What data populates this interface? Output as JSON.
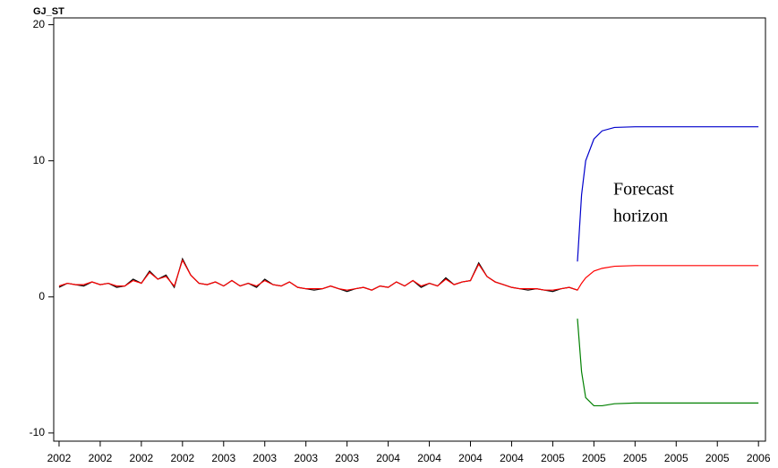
{
  "chart_data": {
    "type": "line",
    "y_axis_label": "GJ_ST",
    "annotation": [
      "Forecast",
      "horizon"
    ],
    "xlim": [
      -0.13,
      17.17
    ],
    "ylim": [
      -10.6,
      20.5
    ],
    "yticks": [
      -10,
      0,
      10,
      20
    ],
    "xticks": [
      {
        "value": 0,
        "label": "2002"
      },
      {
        "value": 1,
        "label": "2002"
      },
      {
        "value": 2,
        "label": "2002"
      },
      {
        "value": 3,
        "label": "2002"
      },
      {
        "value": 4,
        "label": "2003"
      },
      {
        "value": 5,
        "label": "2003"
      },
      {
        "value": 6,
        "label": "2003"
      },
      {
        "value": 7,
        "label": "2003"
      },
      {
        "value": 8,
        "label": "2004"
      },
      {
        "value": 9,
        "label": "2004"
      },
      {
        "value": 10,
        "label": "2004"
      },
      {
        "value": 11,
        "label": "2004"
      },
      {
        "value": 12,
        "label": "2005"
      },
      {
        "value": 13,
        "label": "2005"
      },
      {
        "value": 14,
        "label": "2005"
      },
      {
        "value": 15,
        "label": "2005"
      },
      {
        "value": 16,
        "label": "2005"
      },
      {
        "value": 17,
        "label": "2006"
      }
    ],
    "series": [
      {
        "color": "#000000",
        "x": [
          0,
          0.2,
          0.4,
          0.6,
          0.8,
          1,
          1.2,
          1.4,
          1.6,
          1.8,
          2,
          2.2,
          2.4,
          2.6,
          2.8,
          3,
          3.2,
          3.4,
          3.6,
          3.8,
          4,
          4.2,
          4.4,
          4.6,
          4.8,
          5,
          5.2,
          5.4,
          5.6,
          5.8,
          6,
          6.2,
          6.4,
          6.6,
          6.8,
          7,
          7.2,
          7.4,
          7.6,
          7.8,
          8,
          8.2,
          8.4,
          8.6,
          8.8,
          9,
          9.2,
          9.4,
          9.6,
          9.8,
          10,
          10.2,
          10.4,
          10.6,
          10.8,
          11,
          11.2,
          11.4,
          11.6,
          11.8,
          12,
          12.2,
          12.4,
          12.6
        ],
        "values": [
          0.7,
          1.0,
          0.9,
          0.8,
          1.1,
          0.9,
          1.0,
          0.7,
          0.8,
          1.3,
          1.0,
          1.9,
          1.3,
          1.6,
          0.7,
          2.8,
          1.6,
          1.0,
          0.9,
          1.1,
          0.8,
          1.2,
          0.8,
          1.0,
          0.7,
          1.3,
          0.9,
          0.8,
          1.1,
          0.7,
          0.6,
          0.5,
          0.6,
          0.8,
          0.6,
          0.4,
          0.6,
          0.7,
          0.5,
          0.8,
          0.7,
          1.1,
          0.8,
          1.2,
          0.7,
          1.0,
          0.8,
          1.4,
          0.9,
          1.1,
          1.2,
          2.5,
          1.5,
          1.1,
          0.9,
          0.7,
          0.6,
          0.5,
          0.6,
          0.5,
          0.4,
          0.6,
          0.7,
          0.5
        ]
      },
      {
        "color": "#ff0000",
        "x": [
          0,
          0.2,
          0.4,
          0.6,
          0.8,
          1,
          1.2,
          1.4,
          1.6,
          1.8,
          2,
          2.2,
          2.4,
          2.6,
          2.8,
          3,
          3.2,
          3.4,
          3.6,
          3.8,
          4,
          4.2,
          4.4,
          4.6,
          4.8,
          5,
          5.2,
          5.4,
          5.6,
          5.8,
          6,
          6.2,
          6.4,
          6.6,
          6.8,
          7,
          7.2,
          7.4,
          7.6,
          7.8,
          8,
          8.2,
          8.4,
          8.6,
          8.8,
          9,
          9.2,
          9.4,
          9.6,
          9.8,
          10,
          10.2,
          10.4,
          10.6,
          10.8,
          11,
          11.2,
          11.4,
          11.6,
          11.8,
          12,
          12.2,
          12.4,
          12.6,
          12.7,
          12.8,
          13,
          13.2,
          13.5,
          14,
          15,
          16,
          17
        ],
        "values": [
          0.8,
          1.0,
          0.9,
          0.9,
          1.1,
          0.9,
          1.0,
          0.8,
          0.8,
          1.2,
          1.0,
          1.8,
          1.3,
          1.5,
          0.8,
          2.7,
          1.6,
          1.0,
          0.9,
          1.1,
          0.8,
          1.2,
          0.8,
          1.0,
          0.8,
          1.2,
          0.9,
          0.8,
          1.1,
          0.7,
          0.6,
          0.6,
          0.6,
          0.8,
          0.6,
          0.5,
          0.6,
          0.7,
          0.5,
          0.8,
          0.7,
          1.1,
          0.8,
          1.2,
          0.8,
          1.0,
          0.8,
          1.3,
          0.9,
          1.1,
          1.2,
          2.4,
          1.5,
          1.1,
          0.9,
          0.7,
          0.6,
          0.6,
          0.6,
          0.5,
          0.5,
          0.6,
          0.7,
          0.5,
          1.0,
          1.4,
          1.9,
          2.1,
          2.25,
          2.3,
          2.3,
          2.3,
          2.3
        ]
      },
      {
        "color": "#0000cc",
        "x": [
          12.6,
          12.7,
          12.8,
          13,
          13.2,
          13.5,
          14,
          15,
          16,
          17
        ],
        "values": [
          2.6,
          7.5,
          10,
          11.6,
          12.2,
          12.45,
          12.5,
          12.5,
          12.5,
          12.5
        ]
      },
      {
        "color": "#008000",
        "x": [
          12.6,
          12.7,
          12.8,
          13,
          13.2,
          13.5,
          14,
          15,
          16,
          17
        ],
        "values": [
          -1.6,
          -5.5,
          -7.4,
          -8.0,
          -8.0,
          -7.85,
          -7.8,
          -7.8,
          -7.8,
          -7.8
        ]
      }
    ]
  }
}
